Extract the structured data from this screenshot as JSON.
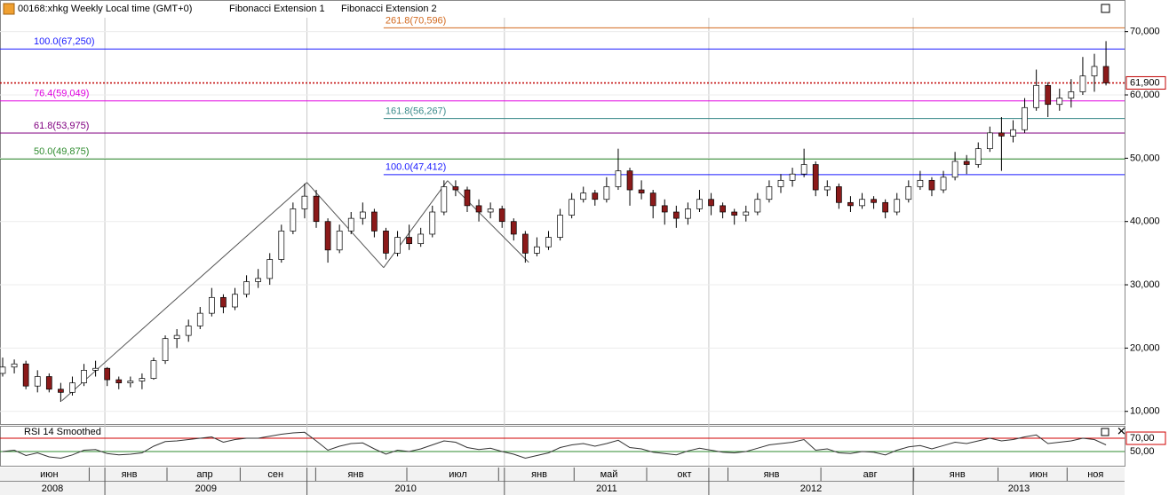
{
  "chart_data": {
    "type": "candlestick",
    "title": "00168:xhkg Weekly Local time (GMT+0)",
    "tools": [
      "Fibonacci Extension 1",
      "Fibonacci Extension 2"
    ],
    "candles": [
      [
        16000,
        18500,
        15500,
        17000
      ],
      [
        17000,
        18200,
        16000,
        17500
      ],
      [
        17500,
        18000,
        13500,
        14000
      ],
      [
        14000,
        16500,
        13000,
        15500
      ],
      [
        15500,
        16000,
        13000,
        13500
      ],
      [
        13500,
        14500,
        11500,
        13000
      ],
      [
        13000,
        15500,
        12500,
        14500
      ],
      [
        14500,
        17500,
        14000,
        16500
      ],
      [
        16500,
        18000,
        15500,
        16800
      ],
      [
        16800,
        17000,
        14000,
        15000
      ],
      [
        15000,
        15500,
        13500,
        14500
      ],
      [
        14500,
        15500,
        13800,
        14800
      ],
      [
        14800,
        16000,
        13500,
        15200
      ],
      [
        15200,
        18500,
        15000,
        18000
      ],
      [
        18000,
        22000,
        17500,
        21500
      ],
      [
        21500,
        23000,
        20000,
        22000
      ],
      [
        22000,
        24500,
        21000,
        23500
      ],
      [
        23500,
        26500,
        23000,
        25500
      ],
      [
        25500,
        29500,
        25000,
        28000
      ],
      [
        28000,
        28500,
        25500,
        26500
      ],
      [
        26500,
        29500,
        26000,
        28500
      ],
      [
        28500,
        31500,
        28000,
        30500
      ],
      [
        30500,
        32500,
        29500,
        31000
      ],
      [
        31000,
        35000,
        30000,
        34000
      ],
      [
        34000,
        39500,
        33500,
        38500
      ],
      [
        38500,
        43000,
        38000,
        42000
      ],
      [
        42000,
        46000,
        40500,
        44000
      ],
      [
        44000,
        45000,
        39000,
        40000
      ],
      [
        40000,
        40500,
        33500,
        35500
      ],
      [
        35500,
        39500,
        35000,
        38500
      ],
      [
        38500,
        41500,
        38000,
        40500
      ],
      [
        40500,
        43000,
        39500,
        41500
      ],
      [
        41500,
        42000,
        37500,
        38500
      ],
      [
        38500,
        39000,
        34000,
        35000
      ],
      [
        35000,
        38500,
        34500,
        37500
      ],
      [
        37500,
        39500,
        35500,
        36500
      ],
      [
        36500,
        39000,
        36000,
        38000
      ],
      [
        38000,
        42500,
        37500,
        41500
      ],
      [
        41500,
        46500,
        41000,
        45500
      ],
      [
        45500,
        46500,
        44000,
        45000
      ],
      [
        45000,
        45500,
        41500,
        42500
      ],
      [
        42500,
        43500,
        40000,
        41500
      ],
      [
        41500,
        43000,
        40500,
        42000
      ],
      [
        42000,
        42500,
        39000,
        40000
      ],
      [
        40000,
        40500,
        37000,
        38000
      ],
      [
        38000,
        38500,
        33500,
        35000
      ],
      [
        35000,
        37500,
        34500,
        36000
      ],
      [
        36000,
        38500,
        35500,
        37500
      ],
      [
        37500,
        42000,
        37000,
        41000
      ],
      [
        41000,
        44500,
        40500,
        43500
      ],
      [
        43500,
        45500,
        43000,
        44500
      ],
      [
        44500,
        45000,
        42500,
        43500
      ],
      [
        43500,
        47000,
        43000,
        45500
      ],
      [
        45500,
        51500,
        45000,
        48000
      ],
      [
        48000,
        48500,
        42500,
        45000
      ],
      [
        45000,
        46500,
        43500,
        44500
      ],
      [
        44500,
        45000,
        40500,
        42500
      ],
      [
        42500,
        43500,
        39500,
        41500
      ],
      [
        41500,
        42500,
        39000,
        40500
      ],
      [
        40500,
        43000,
        39500,
        42000
      ],
      [
        42000,
        45000,
        41500,
        43500
      ],
      [
        43500,
        44500,
        41000,
        42500
      ],
      [
        42500,
        43000,
        40500,
        41500
      ],
      [
        41500,
        42000,
        39500,
        41000
      ],
      [
        41000,
        42500,
        40000,
        41500
      ],
      [
        41500,
        44500,
        41000,
        43500
      ],
      [
        43500,
        46500,
        43000,
        45500
      ],
      [
        45500,
        47500,
        44500,
        46500
      ],
      [
        46500,
        48500,
        45500,
        47500
      ],
      [
        47500,
        51500,
        47000,
        49000
      ],
      [
        49000,
        49500,
        44000,
        45000
      ],
      [
        45000,
        46500,
        44000,
        45500
      ],
      [
        45500,
        46000,
        42000,
        43000
      ],
      [
        43000,
        44000,
        41500,
        42500
      ],
      [
        42500,
        44500,
        42000,
        43500
      ],
      [
        43500,
        44000,
        42000,
        43000
      ],
      [
        43000,
        43500,
        40500,
        41500
      ],
      [
        41500,
        44500,
        41000,
        43500
      ],
      [
        43500,
        46500,
        43000,
        45500
      ],
      [
        45500,
        48000,
        45000,
        46500
      ],
      [
        46500,
        47000,
        44000,
        45000
      ],
      [
        45000,
        48000,
        44500,
        47000
      ],
      [
        47000,
        51000,
        46500,
        49500
      ],
      [
        49500,
        50500,
        47500,
        49000
      ],
      [
        49000,
        52500,
        48500,
        51500
      ],
      [
        51500,
        55000,
        51000,
        54000
      ],
      [
        54000,
        56500,
        48000,
        53500
      ],
      [
        53500,
        56000,
        52500,
        54500
      ],
      [
        54500,
        59500,
        54000,
        58000
      ],
      [
        58000,
        64000,
        57500,
        61500
      ],
      [
        61500,
        62000,
        56500,
        58500
      ],
      [
        58500,
        61000,
        57500,
        59500
      ],
      [
        59500,
        62500,
        58000,
        60500
      ],
      [
        60500,
        66000,
        60000,
        63000
      ],
      [
        63000,
        66500,
        60500,
        64500
      ],
      [
        64500,
        68500,
        61500,
        61900
      ]
    ],
    "up_color": "#ffffff",
    "down_color": "#8b1a1a",
    "xlim": [
      -0.23,
      96.6
    ],
    "ylim": [
      8000,
      75000
    ],
    "yticks": [
      {
        "value": 10000,
        "label": "10,000"
      },
      {
        "value": 20000,
        "label": "20,000"
      },
      {
        "value": 30000,
        "label": "30,000"
      },
      {
        "value": 40000,
        "label": "40,000"
      },
      {
        "value": 50000,
        "label": "50,000"
      },
      {
        "value": 60000,
        "label": "60,000"
      },
      {
        "value": 70000,
        "label": "70,000"
      }
    ],
    "last_price": {
      "value": 61900,
      "label": "61,900"
    },
    "fib_levels": [
      {
        "label": "261.8(70,596)",
        "value": 70596,
        "color": "#d2691e",
        "start": 32.8
      },
      {
        "label": "100.0(67,250)",
        "value": 67250,
        "color": "#1a1aff",
        "start": -0.23
      },
      {
        "label": "76.4(59,049)",
        "value": 59049,
        "color": "#e000e0",
        "start": -0.23
      },
      {
        "label": "161.8(56,267)",
        "value": 56267,
        "color": "#3a8a8a",
        "start": 32.8
      },
      {
        "label": "61.8(53,975)",
        "value": 53975,
        "color": "#800080",
        "start": -0.23
      },
      {
        "label": "50.0(49,875)",
        "value": 49875,
        "color": "#2e8b2e",
        "start": -0.23
      },
      {
        "label": "100.0(47,412)",
        "value": 47412,
        "color": "#1a1aff",
        "start": 32.8
      }
    ],
    "fib_drawings": [
      {
        "points": [
          [
            5.1,
            11680
          ],
          [
            26.2,
            46170
          ],
          [
            32.8,
            32710
          ]
        ]
      },
      {
        "points": [
          [
            32.8,
            32710
          ],
          [
            38.3,
            46450
          ],
          [
            45.3,
            33550
          ]
        ]
      }
    ],
    "month_ticks": [
      {
        "value": 4.0,
        "label": "июн"
      },
      {
        "value": 10.9,
        "label": "янв"
      },
      {
        "value": 17.4,
        "label": "апр"
      },
      {
        "value": 23.5,
        "label": "сен"
      },
      {
        "value": 30.4,
        "label": "янв"
      },
      {
        "value": 39.2,
        "label": "июл"
      },
      {
        "value": 46.2,
        "label": "янв"
      },
      {
        "value": 52.2,
        "label": "май"
      },
      {
        "value": 58.7,
        "label": "окт"
      },
      {
        "value": 66.2,
        "label": "янв"
      },
      {
        "value": 74.7,
        "label": "авг"
      },
      {
        "value": 82.2,
        "label": "янв"
      },
      {
        "value": 89.2,
        "label": "июн"
      },
      {
        "value": 94.1,
        "label": "ноя"
      }
    ],
    "year_ticks": [
      {
        "value": -0.23,
        "label": "2008"
      },
      {
        "value": 8.8,
        "label": "2009"
      },
      {
        "value": 26.2,
        "label": "2010"
      },
      {
        "value": 43.2,
        "label": "2011"
      },
      {
        "value": 60.8,
        "label": "2012"
      },
      {
        "value": 78.4,
        "label": "2013"
      }
    ],
    "rsi": {
      "name": "RSI 14 Smoothed",
      "ylim": [
        28.7,
        88.7
      ],
      "yticks": [
        {
          "value": 70,
          "label": "70,00"
        },
        {
          "value": 50,
          "label": "50,00"
        }
      ],
      "values": [
        50,
        52,
        44,
        48,
        42,
        40,
        45,
        52,
        53,
        47,
        45,
        46,
        48,
        58,
        65,
        66,
        68,
        70,
        72,
        64,
        68,
        70,
        70,
        73,
        76,
        78,
        79,
        66,
        52,
        58,
        62,
        63,
        54,
        46,
        52,
        50,
        54,
        60,
        66,
        64,
        56,
        53,
        55,
        50,
        46,
        40,
        44,
        48,
        56,
        60,
        62,
        58,
        62,
        67,
        56,
        54,
        49,
        47,
        45,
        51,
        55,
        52,
        49,
        48,
        50,
        55,
        60,
        62,
        64,
        68,
        52,
        54,
        48,
        47,
        50,
        49,
        45,
        52,
        57,
        59,
        54,
        59,
        64,
        62,
        66,
        70,
        66,
        68,
        72,
        75,
        62,
        64,
        66,
        70,
        68,
        60
      ]
    }
  }
}
